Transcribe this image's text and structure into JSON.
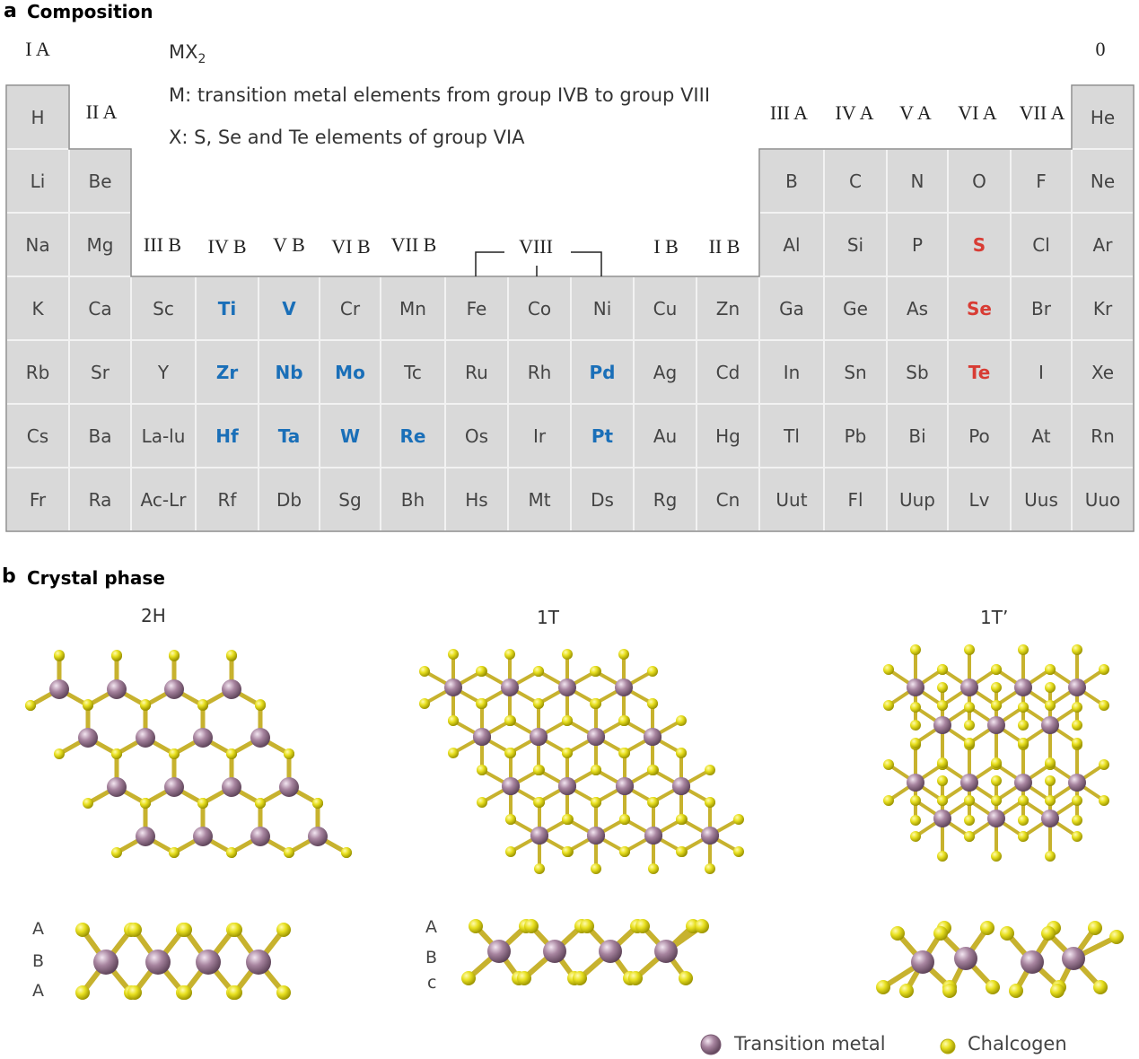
{
  "panel_a": {
    "label": "a",
    "title": "Composition",
    "info_lines": {
      "formula_base": "MX",
      "formula_sub": "2",
      "m_line": "M: transition metal elements from group IVB to group VIII",
      "x_line": "X: S, Se and Te elements of group VIA"
    },
    "group_labels": {
      "g1": "I A",
      "g2": "II A",
      "g3b": "III B",
      "g4b": "IV B",
      "g5b": "V B",
      "g6b": "VI B",
      "g7b": "VII B",
      "g8": "VIII",
      "g1b": "I B",
      "g2b": "II B",
      "g3a": "III A",
      "g4a": "IV A",
      "g5a": "V A",
      "g6a": "VI A",
      "g7a": "VII A",
      "g0": "0"
    },
    "elements": [
      {
        "sym": "H",
        "row": 0,
        "col": 0,
        "cls": ""
      },
      {
        "sym": "He",
        "row": 0,
        "col": 17,
        "cls": ""
      },
      {
        "sym": "Li",
        "row": 1,
        "col": 0,
        "cls": ""
      },
      {
        "sym": "Be",
        "row": 1,
        "col": 1,
        "cls": ""
      },
      {
        "sym": "B",
        "row": 1,
        "col": 12,
        "cls": ""
      },
      {
        "sym": "C",
        "row": 1,
        "col": 13,
        "cls": ""
      },
      {
        "sym": "N",
        "row": 1,
        "col": 14,
        "cls": ""
      },
      {
        "sym": "O",
        "row": 1,
        "col": 15,
        "cls": ""
      },
      {
        "sym": "F",
        "row": 1,
        "col": 16,
        "cls": ""
      },
      {
        "sym": "Ne",
        "row": 1,
        "col": 17,
        "cls": ""
      },
      {
        "sym": "Na",
        "row": 2,
        "col": 0,
        "cls": ""
      },
      {
        "sym": "Mg",
        "row": 2,
        "col": 1,
        "cls": ""
      },
      {
        "sym": "Al",
        "row": 2,
        "col": 12,
        "cls": ""
      },
      {
        "sym": "Si",
        "row": 2,
        "col": 13,
        "cls": ""
      },
      {
        "sym": "P",
        "row": 2,
        "col": 14,
        "cls": ""
      },
      {
        "sym": "S",
        "row": 2,
        "col": 15,
        "cls": "chal"
      },
      {
        "sym": "Cl",
        "row": 2,
        "col": 16,
        "cls": ""
      },
      {
        "sym": "Ar",
        "row": 2,
        "col": 17,
        "cls": ""
      },
      {
        "sym": "K",
        "row": 3,
        "col": 0,
        "cls": ""
      },
      {
        "sym": "Ca",
        "row": 3,
        "col": 1,
        "cls": ""
      },
      {
        "sym": "Sc",
        "row": 3,
        "col": 2,
        "cls": ""
      },
      {
        "sym": "Ti",
        "row": 3,
        "col": 3,
        "cls": "metal"
      },
      {
        "sym": "V",
        "row": 3,
        "col": 4,
        "cls": "metal"
      },
      {
        "sym": "Cr",
        "row": 3,
        "col": 5,
        "cls": ""
      },
      {
        "sym": "Mn",
        "row": 3,
        "col": 6,
        "cls": ""
      },
      {
        "sym": "Fe",
        "row": 3,
        "col": 7,
        "cls": ""
      },
      {
        "sym": "Co",
        "row": 3,
        "col": 8,
        "cls": ""
      },
      {
        "sym": "Ni",
        "row": 3,
        "col": 9,
        "cls": ""
      },
      {
        "sym": "Cu",
        "row": 3,
        "col": 10,
        "cls": ""
      },
      {
        "sym": "Zn",
        "row": 3,
        "col": 11,
        "cls": ""
      },
      {
        "sym": "Ga",
        "row": 3,
        "col": 12,
        "cls": ""
      },
      {
        "sym": "Ge",
        "row": 3,
        "col": 13,
        "cls": ""
      },
      {
        "sym": "As",
        "row": 3,
        "col": 14,
        "cls": ""
      },
      {
        "sym": "Se",
        "row": 3,
        "col": 15,
        "cls": "chal"
      },
      {
        "sym": "Br",
        "row": 3,
        "col": 16,
        "cls": ""
      },
      {
        "sym": "Kr",
        "row": 3,
        "col": 17,
        "cls": ""
      },
      {
        "sym": "Rb",
        "row": 4,
        "col": 0,
        "cls": ""
      },
      {
        "sym": "Sr",
        "row": 4,
        "col": 1,
        "cls": ""
      },
      {
        "sym": "Y",
        "row": 4,
        "col": 2,
        "cls": ""
      },
      {
        "sym": "Zr",
        "row": 4,
        "col": 3,
        "cls": "metal"
      },
      {
        "sym": "Nb",
        "row": 4,
        "col": 4,
        "cls": "metal"
      },
      {
        "sym": "Mo",
        "row": 4,
        "col": 5,
        "cls": "metal"
      },
      {
        "sym": "Tc",
        "row": 4,
        "col": 6,
        "cls": ""
      },
      {
        "sym": "Ru",
        "row": 4,
        "col": 7,
        "cls": ""
      },
      {
        "sym": "Rh",
        "row": 4,
        "col": 8,
        "cls": ""
      },
      {
        "sym": "Pd",
        "row": 4,
        "col": 9,
        "cls": "metal"
      },
      {
        "sym": "Ag",
        "row": 4,
        "col": 10,
        "cls": ""
      },
      {
        "sym": "Cd",
        "row": 4,
        "col": 11,
        "cls": ""
      },
      {
        "sym": "In",
        "row": 4,
        "col": 12,
        "cls": ""
      },
      {
        "sym": "Sn",
        "row": 4,
        "col": 13,
        "cls": ""
      },
      {
        "sym": "Sb",
        "row": 4,
        "col": 14,
        "cls": ""
      },
      {
        "sym": "Te",
        "row": 4,
        "col": 15,
        "cls": "chal"
      },
      {
        "sym": "I",
        "row": 4,
        "col": 16,
        "cls": ""
      },
      {
        "sym": "Xe",
        "row": 4,
        "col": 17,
        "cls": ""
      },
      {
        "sym": "Cs",
        "row": 5,
        "col": 0,
        "cls": ""
      },
      {
        "sym": "Ba",
        "row": 5,
        "col": 1,
        "cls": ""
      },
      {
        "sym": "La-lu",
        "row": 5,
        "col": 2,
        "cls": ""
      },
      {
        "sym": "Hf",
        "row": 5,
        "col": 3,
        "cls": "metal"
      },
      {
        "sym": "Ta",
        "row": 5,
        "col": 4,
        "cls": "metal"
      },
      {
        "sym": "W",
        "row": 5,
        "col": 5,
        "cls": "metal"
      },
      {
        "sym": "Re",
        "row": 5,
        "col": 6,
        "cls": "metal"
      },
      {
        "sym": "Os",
        "row": 5,
        "col": 7,
        "cls": ""
      },
      {
        "sym": "Ir",
        "row": 5,
        "col": 8,
        "cls": ""
      },
      {
        "sym": "Pt",
        "row": 5,
        "col": 9,
        "cls": "metal"
      },
      {
        "sym": "Au",
        "row": 5,
        "col": 10,
        "cls": ""
      },
      {
        "sym": "Hg",
        "row": 5,
        "col": 11,
        "cls": ""
      },
      {
        "sym": "Tl",
        "row": 5,
        "col": 12,
        "cls": ""
      },
      {
        "sym": "Pb",
        "row": 5,
        "col": 13,
        "cls": ""
      },
      {
        "sym": "Bi",
        "row": 5,
        "col": 14,
        "cls": ""
      },
      {
        "sym": "Po",
        "row": 5,
        "col": 15,
        "cls": ""
      },
      {
        "sym": "At",
        "row": 5,
        "col": 16,
        "cls": ""
      },
      {
        "sym": "Rn",
        "row": 5,
        "col": 17,
        "cls": ""
      },
      {
        "sym": "Fr",
        "row": 6,
        "col": 0,
        "cls": ""
      },
      {
        "sym": "Ra",
        "row": 6,
        "col": 1,
        "cls": ""
      },
      {
        "sym": "Ac-Lr",
        "row": 6,
        "col": 2,
        "cls": ""
      },
      {
        "sym": "Rf",
        "row": 6,
        "col": 3,
        "cls": ""
      },
      {
        "sym": "Db",
        "row": 6,
        "col": 4,
        "cls": ""
      },
      {
        "sym": "Sg",
        "row": 6,
        "col": 5,
        "cls": ""
      },
      {
        "sym": "Bh",
        "row": 6,
        "col": 6,
        "cls": ""
      },
      {
        "sym": "Hs",
        "row": 6,
        "col": 7,
        "cls": ""
      },
      {
        "sym": "Mt",
        "row": 6,
        "col": 8,
        "cls": ""
      },
      {
        "sym": "Ds",
        "row": 6,
        "col": 9,
        "cls": ""
      },
      {
        "sym": "Rg",
        "row": 6,
        "col": 10,
        "cls": ""
      },
      {
        "sym": "Cn",
        "row": 6,
        "col": 11,
        "cls": ""
      },
      {
        "sym": "Uut",
        "row": 6,
        "col": 12,
        "cls": ""
      },
      {
        "sym": "Fl",
        "row": 6,
        "col": 13,
        "cls": ""
      },
      {
        "sym": "Uup",
        "row": 6,
        "col": 14,
        "cls": ""
      },
      {
        "sym": "Lv",
        "row": 6,
        "col": 15,
        "cls": ""
      },
      {
        "sym": "Uus",
        "row": 6,
        "col": 16,
        "cls": ""
      },
      {
        "sym": "Uuo",
        "row": 6,
        "col": 17,
        "cls": ""
      }
    ]
  },
  "panel_b": {
    "label": "b",
    "title": "Crystal phase",
    "phases": {
      "p2h": "2H",
      "p1t": "1T",
      "p1tp": "1T’"
    },
    "stacking_2h": [
      "A",
      "B",
      "A"
    ],
    "stacking_1t": [
      "A",
      "B",
      "c"
    ],
    "legend": {
      "metal": "Transition metal",
      "chalcogen": "Chalcogen"
    }
  },
  "colors": {
    "metal_element": "#1a6fb8",
    "chalcogen_element": "#d83c34",
    "cell_fill": "#d9d9d9",
    "metal_atom": "#a7849f",
    "chalcogen_atom": "#e8e020"
  }
}
